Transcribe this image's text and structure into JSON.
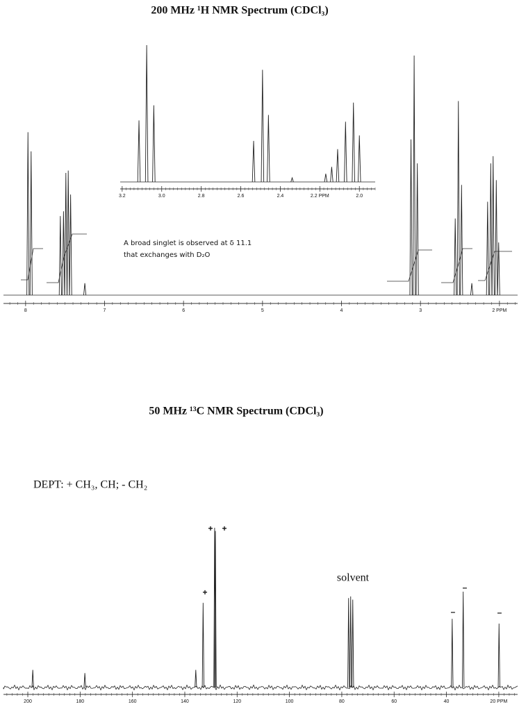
{
  "chart_data": [
    {
      "type": "spectrum",
      "title": "200 MHz ¹H NMR Spectrum (CDCl₃)",
      "annotations": [
        "A broad singlet is observed at δ 11.1",
        "that exchanges with D₂O"
      ],
      "x": [
        7.97,
        7.93,
        7.56,
        7.52,
        7.49,
        7.46,
        7.43,
        7.25,
        3.12,
        3.08,
        3.04,
        2.56,
        2.52,
        2.48,
        2.35,
        2.15,
        2.11,
        2.08,
        2.04,
        2.01
      ],
      "values": [
        68,
        60,
        33,
        35,
        51,
        52,
        42,
        5,
        65,
        100,
        55,
        32,
        81,
        46,
        5,
        39,
        55,
        58,
        48,
        22
      ],
      "xlim": [
        8.28,
        1.77
      ],
      "ylim": [
        0,
        100
      ],
      "xticks": [
        8,
        7,
        6,
        5,
        4,
        3,
        {
          "value": 2,
          "label": "2 PPM"
        }
      ],
      "color": "#222"
    },
    {
      "type": "spectrum",
      "x": [
        3.115,
        3.076,
        3.04,
        2.535,
        2.49,
        2.46,
        2.34,
        2.17,
        2.14,
        2.11,
        2.07,
        2.03,
        2.0
      ],
      "values": [
        45,
        100,
        56,
        30,
        82,
        49,
        3,
        6,
        11,
        24,
        44,
        58,
        34
      ],
      "xlim": [
        3.21,
        1.92
      ],
      "ylim": [
        0,
        100
      ],
      "xticks": [
        3.2,
        {
          "value": 3,
          "label": "3.0"
        },
        2.8,
        2.6,
        2.4,
        {
          "value": 2.2,
          "label": "2.2 PPM"
        },
        {
          "value": 2,
          "label": "2.0"
        }
      ],
      "color": "#222"
    },
    {
      "type": "spectrum",
      "title": "50 MHz ¹³C NMR Spectrum (CDCl₃)",
      "subtitle": "DEPT: + CH₃, CH; - CH₂",
      "annotations": [
        "solvent"
      ],
      "dept_signs": [
        "+",
        "+",
        "+",
        "–",
        "–",
        "–"
      ],
      "x": [
        198.1,
        178.2,
        135.8,
        133.0,
        128.6,
        128.3,
        77.4,
        76.6,
        75.8,
        37.8,
        33.6,
        19.9
      ],
      "values": [
        11,
        9,
        11,
        53,
        100,
        98,
        56,
        57,
        55,
        43,
        60,
        40
      ],
      "xlim": [
        209.3,
        12.8
      ],
      "ylim": [
        0,
        100
      ],
      "xticks": [
        200,
        180,
        160,
        140,
        120,
        100,
        80,
        60,
        40,
        {
          "value": 20,
          "label": "20 PPM"
        }
      ],
      "color": "#222"
    }
  ]
}
